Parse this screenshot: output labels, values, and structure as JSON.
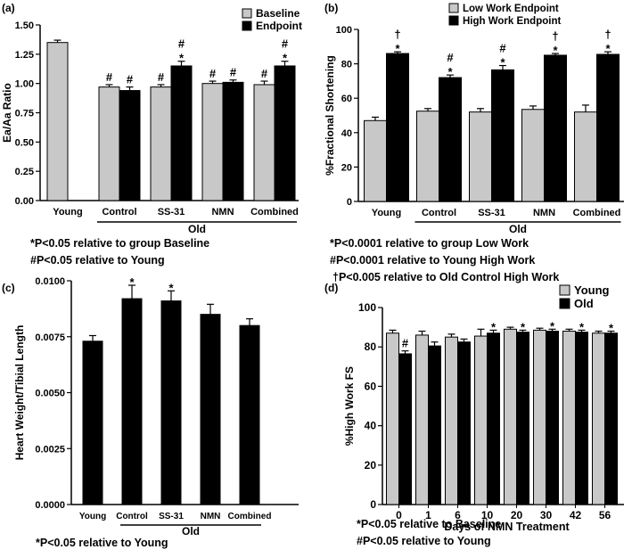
{
  "chart_data": [
    {
      "panel_label": "(a)",
      "type": "bar",
      "ylabel": "Ea/Aa Ratio",
      "ylim": [
        0,
        1.5
      ],
      "yticks": [
        "0.00",
        "0.25",
        "0.50",
        "0.75",
        "1.00",
        "1.25",
        "1.50"
      ],
      "grid": false,
      "legend_position": "top-right",
      "categories": [
        "Young",
        "Control",
        "SS-31",
        "NMN",
        "Combined"
      ],
      "group_label": "Old",
      "series": [
        {
          "name": "Baseline",
          "color": "#c8c8c8",
          "values": [
            1.35,
            0.97,
            0.97,
            1.0,
            0.99
          ],
          "errors": [
            0.02,
            0.02,
            0.02,
            0.02,
            0.03
          ]
        },
        {
          "name": "Endpoint",
          "color": "#000000",
          "values": [
            null,
            0.94,
            1.15,
            1.01,
            1.15
          ],
          "errors": [
            null,
            0.03,
            0.04,
            0.02,
            0.04
          ]
        }
      ],
      "annotations": [
        {
          "series": 0,
          "category": 1,
          "text": "#"
        },
        {
          "series": 1,
          "category": 1,
          "text": "#"
        },
        {
          "series": 0,
          "category": 2,
          "text": "#"
        },
        {
          "series": 1,
          "category": 2,
          "text": "#\n*"
        },
        {
          "series": 0,
          "category": 3,
          "text": "#"
        },
        {
          "series": 1,
          "category": 3,
          "text": "#"
        },
        {
          "series": 0,
          "category": 4,
          "text": "#"
        },
        {
          "series": 1,
          "category": 4,
          "text": "#\n*"
        }
      ],
      "footnotes": [
        "*P<0.05 relative to group Baseline",
        "#P<0.05 relative to Young"
      ]
    },
    {
      "panel_label": "(b)",
      "type": "bar",
      "ylabel": "%Fractional Shortening",
      "ylim": [
        0,
        100
      ],
      "yticks": [
        "0",
        "20",
        "40",
        "60",
        "80",
        "100"
      ],
      "grid": false,
      "legend_position": "top-right",
      "categories": [
        "Young",
        "Control",
        "SS-31",
        "NMN",
        "Combined"
      ],
      "group_label": "Old",
      "series": [
        {
          "name": "Low Work Endpoint",
          "color": "#c8c8c8",
          "values": [
            47,
            52.5,
            52,
            53.5,
            52
          ],
          "errors": [
            2,
            1.5,
            2,
            2,
            4
          ]
        },
        {
          "name": "High Work Endpoint",
          "color": "#000000",
          "values": [
            86,
            72,
            76.5,
            85,
            85.5
          ],
          "errors": [
            1,
            1.5,
            2.5,
            1,
            1.5
          ]
        }
      ],
      "annotations": [
        {
          "series": 1,
          "category": 0,
          "text": "†\n*"
        },
        {
          "series": 1,
          "category": 1,
          "text": "#\n*"
        },
        {
          "series": 1,
          "category": 2,
          "text": "#\n*"
        },
        {
          "series": 1,
          "category": 3,
          "text": "†\n*"
        },
        {
          "series": 1,
          "category": 4,
          "text": "†\n*"
        }
      ],
      "footnotes": [
        "*P<0.0001 relative to group Low Work",
        "#P<0.0001 relative to Young High Work",
        "†P<0.005 relative to Old Control High Work"
      ]
    },
    {
      "panel_label": "(c)",
      "type": "bar",
      "ylabel": "Heart Weight/Tibial Length",
      "ylim": [
        0,
        0.01
      ],
      "yticks": [
        "0.0000",
        "0.0025",
        "0.0050",
        "0.0075",
        "0.0100"
      ],
      "grid": false,
      "categories": [
        "Young",
        "Control",
        "SS-31",
        "NMN",
        "Combined"
      ],
      "group_label": "Old",
      "series": [
        {
          "color": "#000000",
          "values": [
            0.0073,
            0.0092,
            0.0091,
            0.0085,
            0.008
          ],
          "errors": [
            0.00025,
            0.0006,
            0.00045,
            0.00045,
            0.0003
          ]
        }
      ],
      "annotations": [
        {
          "series": 0,
          "category": 1,
          "text": "*"
        },
        {
          "series": 0,
          "category": 2,
          "text": "*"
        }
      ],
      "footnotes": [
        "*P<0.05 relative to Young"
      ]
    },
    {
      "panel_label": "(d)",
      "type": "bar",
      "ylabel": "%High Work FS",
      "xlabel": "Days of NMN Treatment",
      "ylim": [
        0,
        100
      ],
      "yticks": [
        "0",
        "20",
        "40",
        "60",
        "80",
        "100"
      ],
      "grid": false,
      "legend_position": "top-right",
      "categories": [
        "0",
        "1",
        "6",
        "10",
        "20",
        "30",
        "42",
        "56"
      ],
      "series": [
        {
          "name": "Young",
          "color": "#c8c8c8",
          "values": [
            87,
            86,
            85,
            85.5,
            89,
            88.5,
            88,
            87
          ],
          "errors": [
            1.5,
            2,
            1.5,
            3.5,
            1,
            1,
            1,
            1
          ]
        },
        {
          "name": "Old",
          "color": "#000000",
          "values": [
            76.5,
            80.5,
            82.5,
            87,
            87.5,
            88,
            87.5,
            87
          ],
          "errors": [
            1.5,
            2,
            1.5,
            1.5,
            1,
            1,
            1,
            1
          ]
        }
      ],
      "annotations": [
        {
          "series": 1,
          "category": 0,
          "text": "#"
        },
        {
          "series": 1,
          "category": 3,
          "text": "*"
        },
        {
          "series": 1,
          "category": 4,
          "text": "*"
        },
        {
          "series": 1,
          "category": 5,
          "text": "*"
        },
        {
          "series": 1,
          "category": 6,
          "text": "*"
        },
        {
          "series": 1,
          "category": 7,
          "text": "*"
        }
      ],
      "footnotes": [
        "*P<0.05 relative to Baseline",
        "#P<0.05 relative to Young"
      ]
    }
  ]
}
